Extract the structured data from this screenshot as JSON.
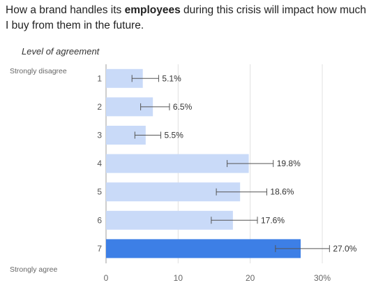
{
  "title": {
    "pre": "How a brand handles its ",
    "bold": "employees",
    "post": " during this crisis will impact how much I buy from them in the future."
  },
  "subtitle": "Level of agreement",
  "scale_labels": {
    "top": "Strongly disagree",
    "bottom": "Strongly agree"
  },
  "colors": {
    "bar": "#c9daf8",
    "highlight_bar": "#3d7fe6",
    "grid": "#e0e0e0",
    "error_bar": "#555555"
  },
  "chart_data": {
    "type": "bar",
    "orientation": "horizontal",
    "categories": [
      "1",
      "2",
      "3",
      "4",
      "5",
      "6",
      "7"
    ],
    "values": [
      5.1,
      6.5,
      5.5,
      19.8,
      18.6,
      17.6,
      27.0
    ],
    "data_labels": [
      "5.1%",
      "6.5%",
      "5.5%",
      "19.8%",
      "18.6%",
      "17.6%",
      "27.0%"
    ],
    "error_low": [
      3.6,
      4.8,
      4.0,
      16.8,
      15.3,
      14.6,
      23.5
    ],
    "error_high": [
      7.3,
      8.8,
      7.6,
      23.2,
      22.3,
      21.0,
      31.0
    ],
    "highlight_index": 6,
    "xlim": [
      0,
      30
    ],
    "xticks": [
      0,
      10,
      20,
      30
    ],
    "xtick_labels": [
      "0",
      "10",
      "20",
      "30%"
    ],
    "grid": true
  }
}
